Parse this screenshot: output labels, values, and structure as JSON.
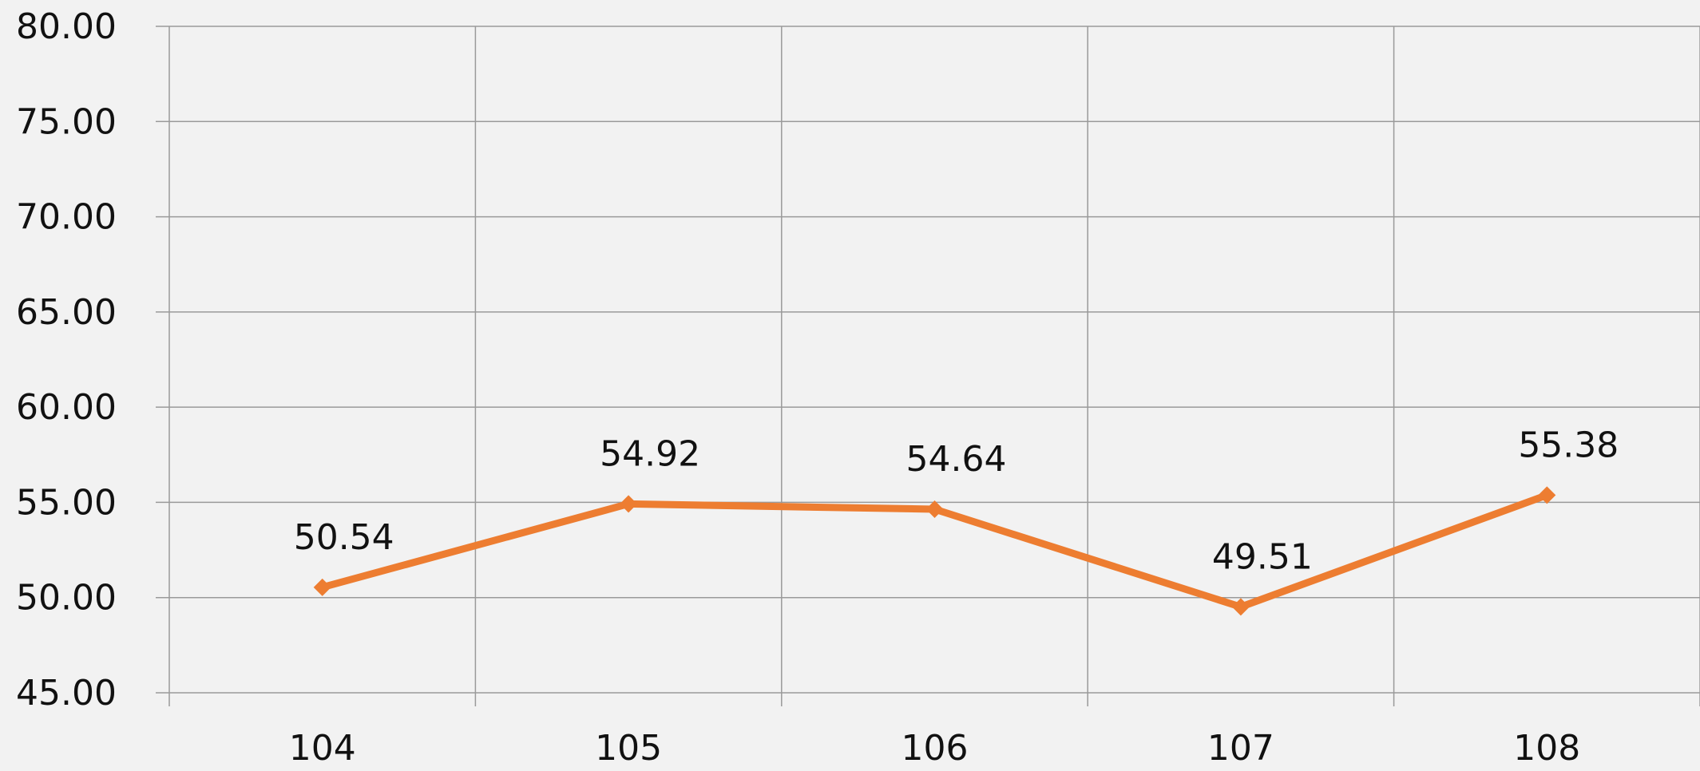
{
  "chart_data": {
    "type": "line",
    "title": "",
    "xlabel": "",
    "ylabel": "",
    "categories": [
      "104",
      "105",
      "106",
      "107",
      "108"
    ],
    "series": [
      {
        "values": [
          50.54,
          54.92,
          54.64,
          49.51,
          55.38
        ],
        "labels": [
          "50.54",
          "54.92",
          "54.64",
          "49.51",
          "55.38"
        ]
      }
    ],
    "ylim": [
      45,
      80
    ],
    "yticks": [
      45,
      50,
      55,
      60,
      65,
      70,
      75,
      80
    ],
    "ytick_labels": [
      "45.00",
      "50.00",
      "55.00",
      "60.00",
      "65.00",
      "70.00",
      "75.00",
      "80.00"
    ],
    "grid": true,
    "legend": "none",
    "colors": {
      "line": "#ED7D31",
      "grid": "#9a9a9a",
      "background": "#f2f2f2",
      "text": "#111111"
    }
  }
}
